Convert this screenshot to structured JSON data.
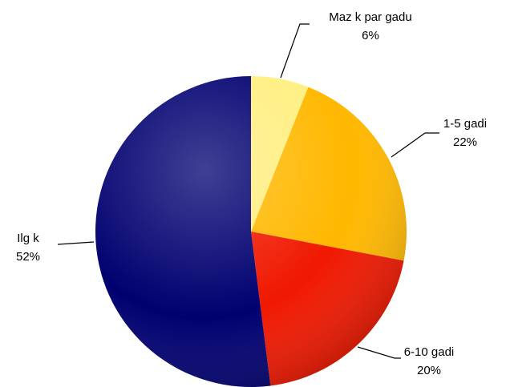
{
  "chart_data": {
    "type": "pie",
    "categories": [
      "Maz k par gadu",
      "1-5 gadi",
      "6-10 gadi",
      "Ilg k"
    ],
    "values": [
      6,
      22,
      20,
      52
    ],
    "value_labels": [
      "6%",
      "22%",
      "20%",
      "52%"
    ],
    "colors": [
      "#ffef80",
      "#ffb800",
      "#f01800",
      "#000070"
    ]
  }
}
